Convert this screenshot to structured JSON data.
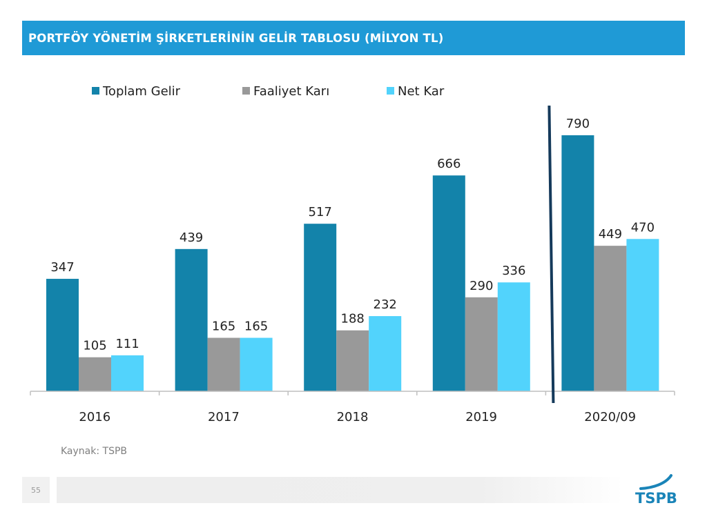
{
  "header": {
    "title": "PORTFÖY YÖNETİM ŞİRKETLERİNİN GELİR TABLOSU (MİLYON TL)"
  },
  "chart_data": {
    "type": "bar",
    "title": "PORTFÖY YÖNETİM ŞİRKETLERİNİN GELİR TABLOSU (MİLYON TL)",
    "categories": [
      "2016",
      "2017",
      "2018",
      "2019",
      "2020/09"
    ],
    "series": [
      {
        "name": "Toplam Gelir",
        "color": "#1383aa",
        "values": [
          347,
          439,
          517,
          666,
          790
        ]
      },
      {
        "name": "Faaliyet Karı",
        "color": "#999999",
        "values": [
          105,
          165,
          188,
          290,
          449
        ]
      },
      {
        "name": "Net Kar",
        "color": "#52d3fc",
        "values": [
          111,
          165,
          232,
          336,
          470
        ]
      }
    ],
    "ylim": [
      0,
      790
    ],
    "grid": false,
    "legend": "top",
    "data_labels": true,
    "separator_before_category": "2020/09",
    "separator_color": "#153a5b"
  },
  "footer": {
    "source": "Kaynak: TSPB",
    "page_number": "55",
    "logo_text": "TSPB",
    "logo_color": "#1a84b8"
  }
}
